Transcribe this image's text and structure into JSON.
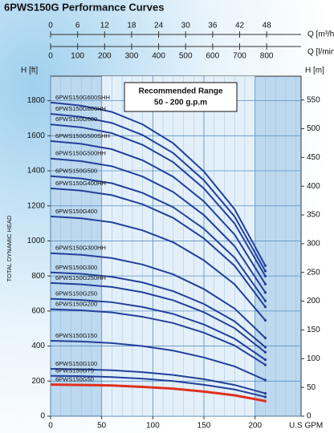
{
  "chart_data": {
    "type": "line",
    "title": "6PWS150G Performance Curves",
    "xlabel": "U.S GPM",
    "ylabel": "TOTAL DYNAMIC HEAD",
    "y_axis_label": "H [ft]",
    "y2_axis_label": "H [m]",
    "xlim": [
      0,
      245
    ],
    "xticks": [
      0,
      50,
      100,
      150,
      200
    ],
    "ylim": [
      0,
      1940
    ],
    "yticks": [
      0,
      200,
      400,
      600,
      800,
      1000,
      1200,
      1400,
      1600,
      1800
    ],
    "y2lim": [
      0,
      591.3
    ],
    "y2ticks": [
      0,
      50,
      100,
      150,
      200,
      250,
      300,
      350,
      400,
      450,
      500,
      550
    ],
    "top_axes": [
      {
        "label": "Q [m³/h]",
        "lim": [
          0,
          55.64
        ],
        "ticks": [
          0,
          6,
          12,
          18,
          24,
          30,
          36,
          42,
          48
        ]
      },
      {
        "label": "Q [l/min]",
        "lim": [
          0,
          927.4
        ],
        "ticks": [
          0,
          100,
          200,
          300,
          400,
          500,
          600,
          700,
          800
        ]
      }
    ],
    "recommended_range": {
      "x": [
        50,
        200
      ],
      "title": "Recommended Range",
      "text": "50 - 200 g.p.m"
    },
    "grid": true,
    "x": [
      0,
      30,
      60,
      90,
      120,
      150,
      180,
      210
    ],
    "series": [
      {
        "name": "6PWS150G600SHH",
        "color": "#23409a",
        "values": [
          1790,
          1772,
          1736,
          1665,
          1557,
          1396,
          1181,
          859
        ]
      },
      {
        "name": "6PWS150G600HH",
        "color": "#23409a",
        "values": [
          1725,
          1708,
          1673,
          1604,
          1501,
          1346,
          1139,
          828
        ]
      },
      {
        "name": "6PWS150G600",
        "color": "#23409a",
        "values": [
          1665,
          1648,
          1615,
          1548,
          1449,
          1299,
          1099,
          799
        ]
      },
      {
        "name": "6PWS150G500SHH",
        "color": "#23409a",
        "values": [
          1570,
          1554,
          1523,
          1460,
          1366,
          1225,
          1036,
          754
        ]
      },
      {
        "name": "6PWS150G500HH",
        "color": "#23409a",
        "values": [
          1470,
          1455,
          1426,
          1367,
          1279,
          1147,
          970,
          706
        ]
      },
      {
        "name": "6PWS150G500",
        "color": "#23409a",
        "values": [
          1370,
          1356,
          1329,
          1274,
          1192,
          1069,
          904,
          658
        ]
      },
      {
        "name": "6PWS150G400HH",
        "color": "#23409a",
        "values": [
          1300,
          1287,
          1261,
          1209,
          1131,
          1014,
          858,
          624
        ]
      },
      {
        "name": "6PWS150G400",
        "color": "#23409a",
        "values": [
          1140,
          1129,
          1106,
          1060,
          992,
          889,
          752,
          547
        ]
      },
      {
        "name": "6PWS150G300HH",
        "color": "#23409a",
        "values": [
          930,
          921,
          902,
          865,
          809,
          725,
          614,
          446
        ]
      },
      {
        "name": "6PWS150G300",
        "color": "#23409a",
        "values": [
          820,
          812,
          795,
          763,
          713,
          640,
          541,
          394
        ]
      },
      {
        "name": "6PWS150G250HH",
        "color": "#23409a",
        "values": [
          760,
          752,
          737,
          707,
          661,
          593,
          502,
          365
        ]
      },
      {
        "name": "6PWS150G250",
        "color": "#23409a",
        "values": [
          670,
          663,
          650,
          623,
          583,
          523,
          442,
          322
        ]
      },
      {
        "name": "6PWS150G200",
        "color": "#23409a",
        "values": [
          610,
          604,
          592,
          567,
          531,
          476,
          403,
          293
        ]
      },
      {
        "name": "6PWS150G150",
        "color": "#23409a",
        "values": [
          430,
          426,
          417,
          400,
          374,
          335,
          284,
          206
        ]
      },
      {
        "name": "6PWS150G100",
        "color": "#23409a",
        "values": [
          270,
          267,
          262,
          251,
          235,
          211,
          178,
          130
        ]
      },
      {
        "name": "6PWS150G75",
        "color": "#23409a",
        "values": [
          230,
          228,
          223,
          214,
          200,
          179,
          152,
          110
        ]
      },
      {
        "name": "6PWS150G50",
        "color": "#e0301e",
        "values": [
          180,
          178,
          175,
          167,
          157,
          140,
          119,
          86
        ]
      }
    ]
  }
}
